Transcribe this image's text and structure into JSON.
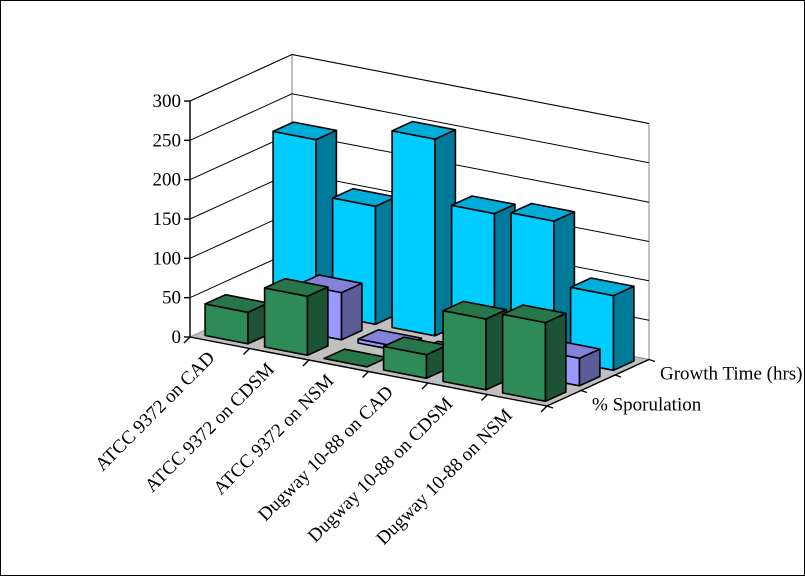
{
  "chart_data": {
    "type": "bar",
    "variant": "3d-column",
    "title": "",
    "categories": [
      "ATCC 9372 on CAD",
      "ATCC 9372 on CDSM",
      "ATCC 9372 on NSM",
      "Dugway 10-88 on CAD",
      "Dugway 10-88 on CDSM",
      "Dugway 10-88 on NSM"
    ],
    "series": [
      {
        "name": "% Sporulation",
        "color": "#2e8b57",
        "values": [
          40,
          75,
          0,
          30,
          90,
          100
        ]
      },
      {
        "name": "",
        "color": "#9999ff",
        "values": [
          5,
          60,
          5,
          5,
          25,
          35
        ]
      },
      {
        "name": "Growth Time (hrs)",
        "color": "#00ccff",
        "values": [
          220,
          150,
          250,
          170,
          175,
          95
        ]
      }
    ],
    "ylim": [
      0,
      300
    ],
    "yticks": [
      0,
      50,
      100,
      150,
      200,
      250,
      300
    ],
    "grid": true,
    "legend": "none"
  }
}
